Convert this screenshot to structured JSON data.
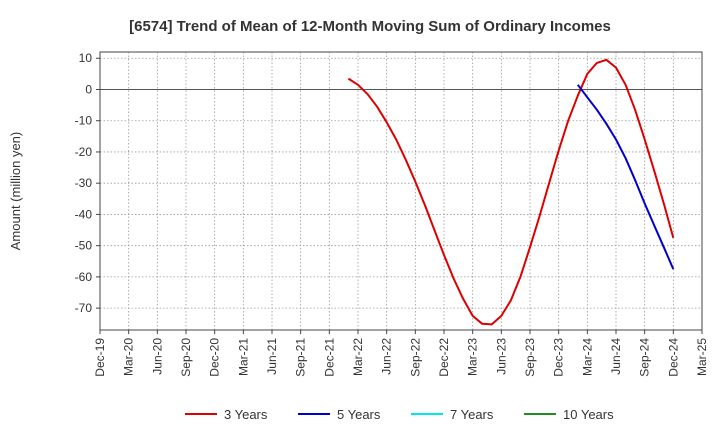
{
  "chart_data": {
    "type": "line",
    "title": "[6574]  Trend of Mean of 12-Month Moving Sum of Ordinary Incomes",
    "xlabel": "",
    "ylabel": "Amount (million yen)",
    "ylim": [
      -77,
      12
    ],
    "yticks": [
      10,
      0,
      -10,
      -20,
      -30,
      -40,
      -50,
      -60,
      -70
    ],
    "xticks": [
      "Dec-19",
      "Mar-20",
      "Jun-20",
      "Sep-20",
      "Dec-20",
      "Mar-21",
      "Jun-21",
      "Sep-21",
      "Dec-21",
      "Mar-22",
      "Jun-22",
      "Sep-22",
      "Dec-22",
      "Mar-23",
      "Jun-23",
      "Sep-23",
      "Dec-23",
      "Mar-24",
      "Jun-24",
      "Sep-24",
      "Dec-24",
      "Mar-25"
    ],
    "grid": true,
    "legend_position": "bottom",
    "series": [
      {
        "name": "3 Years",
        "color": "#dd0000",
        "x": [
          "Feb-22",
          "Mar-22",
          "Apr-22",
          "May-22",
          "Jun-22",
          "Jul-22",
          "Aug-22",
          "Sep-22",
          "Oct-22",
          "Nov-22",
          "Dec-22",
          "Jan-23",
          "Feb-23",
          "Mar-23",
          "Apr-23",
          "May-23",
          "Jun-23",
          "Jul-23",
          "Aug-23",
          "Sep-23",
          "Oct-23",
          "Nov-23",
          "Dec-23",
          "Jan-24",
          "Feb-24",
          "Mar-24",
          "Apr-24",
          "May-24",
          "Jun-24",
          "Jul-24",
          "Aug-24",
          "Sep-24",
          "Oct-24",
          "Nov-24",
          "Dec-24"
        ],
        "values": [
          3.5,
          1.5,
          -1.5,
          -5.5,
          -10.5,
          -16,
          -22.5,
          -29.5,
          -37,
          -45,
          -53,
          -60.5,
          -67,
          -72.5,
          -75,
          -75.2,
          -72.5,
          -67.5,
          -60,
          -50.5,
          -40.5,
          -30,
          -19.5,
          -10,
          -2,
          5,
          8.5,
          9.5,
          7,
          1.5,
          -6.5,
          -16,
          -26,
          -36.5,
          -47.5
        ]
      },
      {
        "name": "5 Years",
        "color": "#0000cc",
        "x": [
          "Feb-24",
          "Mar-24",
          "Apr-24",
          "May-24",
          "Jun-24",
          "Jul-24",
          "Aug-24",
          "Sep-24",
          "Oct-24",
          "Nov-24",
          "Dec-24"
        ],
        "values": [
          1.5,
          -2.5,
          -6.5,
          -11,
          -16,
          -22,
          -29,
          -36.5,
          -43.5,
          -50.5,
          -57.5
        ]
      },
      {
        "name": "7 Years",
        "color": "#00e5ee",
        "x": [],
        "values": []
      },
      {
        "name": "10 Years",
        "color": "#228b22",
        "x": [],
        "values": []
      }
    ]
  }
}
